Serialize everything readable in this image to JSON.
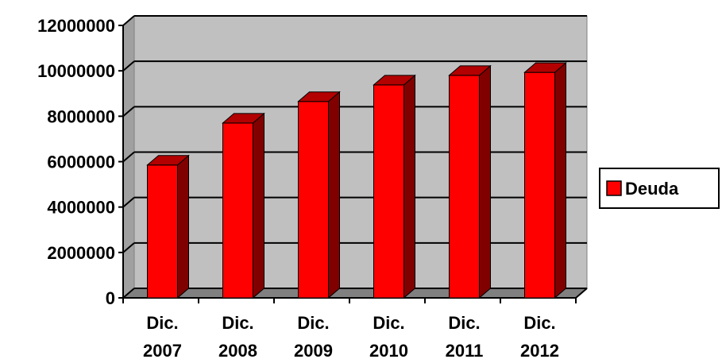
{
  "chart_data": {
    "type": "bar",
    "categories": [
      [
        "Dic.",
        "2007"
      ],
      [
        "Dic.",
        "2008"
      ],
      [
        "Dic.",
        "2009"
      ],
      [
        "Dic.",
        "2010"
      ],
      [
        "Dic.",
        "2011"
      ],
      [
        "Dic.",
        "2012"
      ]
    ],
    "series": [
      {
        "name": "Deuda",
        "values": [
          5850000,
          7700000,
          8650000,
          9380000,
          9800000,
          9930000
        ]
      }
    ],
    "ylim": [
      0,
      12000000
    ],
    "yticks": [
      0,
      2000000,
      4000000,
      6000000,
      8000000,
      10000000,
      12000000
    ],
    "ytick_labels": [
      "0",
      "2000000",
      "4000000",
      "6000000",
      "8000000",
      "10000000",
      "12000000"
    ],
    "grid": true,
    "legend": "right",
    "three_d": true,
    "colors": {
      "bar_front": "#ff0000",
      "bar_side": "#800000",
      "bar_top": "#b30000",
      "wall": "#c0c0c0",
      "floor": "#808080"
    }
  }
}
